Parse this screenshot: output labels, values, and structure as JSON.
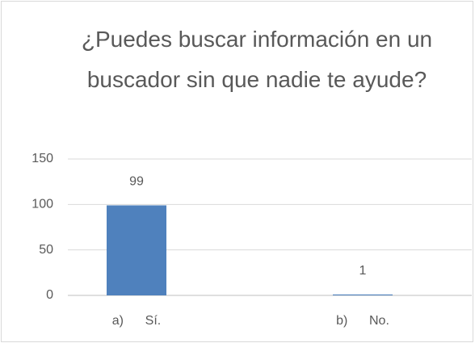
{
  "chart_data": {
    "type": "bar",
    "title": "¿Puedes buscar información en un buscador sin que nadie te ayude?",
    "categories": [
      "a)      Sí.",
      "b)      No."
    ],
    "values": [
      99,
      1
    ],
    "color": "#4f81bd",
    "ylim": [
      0,
      150
    ],
    "yticks": [
      0,
      50,
      100,
      150
    ],
    "grid": true
  }
}
